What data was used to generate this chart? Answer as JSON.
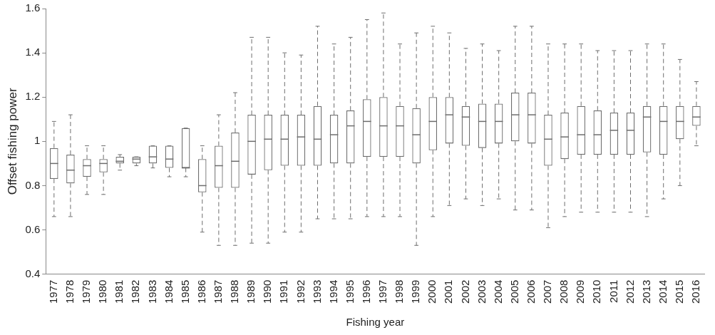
{
  "chart_data": {
    "type": "box",
    "xlabel": "Fishing year",
    "ylabel": "Offset fishing power",
    "categories": [
      "1977",
      "1978",
      "1979",
      "1980",
      "1981",
      "1982",
      "1983",
      "1984",
      "1985",
      "1986",
      "1987",
      "1988",
      "1989",
      "1990",
      "1991",
      "1992",
      "1993",
      "1994",
      "1995",
      "1996",
      "1997",
      "1998",
      "1999",
      "2000",
      "2001",
      "2002",
      "2003",
      "2004",
      "2005",
      "2006",
      "2007",
      "2008",
      "2009",
      "2010",
      "2011",
      "2012",
      "2013",
      "2014",
      "2015",
      "2016"
    ],
    "color": "#6e6e6e",
    "line_style": "dashed",
    "ylim": [
      0.4,
      1.6
    ],
    "yticks": [
      0.4,
      0.6,
      0.8,
      1,
      1.2,
      1.4,
      1.6
    ],
    "boxes": [
      {
        "low": 0.66,
        "q1": 0.83,
        "median": 0.9,
        "q3": 0.97,
        "high": 1.09
      },
      {
        "low": 0.66,
        "q1": 0.81,
        "median": 0.87,
        "q3": 0.94,
        "high": 1.12
      },
      {
        "low": 0.76,
        "q1": 0.84,
        "median": 0.89,
        "q3": 0.92,
        "high": 0.98
      },
      {
        "low": 0.76,
        "q1": 0.86,
        "median": 0.9,
        "q3": 0.92,
        "high": 0.98
      },
      {
        "low": 0.87,
        "q1": 0.9,
        "median": 0.91,
        "q3": 0.93,
        "high": 0.94
      },
      {
        "low": 0.89,
        "q1": 0.9,
        "median": 0.92,
        "q3": 0.93,
        "high": 0.93
      },
      {
        "low": 0.88,
        "q1": 0.9,
        "median": 0.93,
        "q3": 0.98,
        "high": 0.98
      },
      {
        "low": 0.84,
        "q1": 0.88,
        "median": 0.92,
        "q3": 0.98,
        "high": 0.98
      },
      {
        "low": 0.84,
        "q1": 0.88,
        "median": 0.88,
        "q3": 1.06,
        "high": 1.06
      },
      {
        "low": 0.59,
        "q1": 0.77,
        "median": 0.8,
        "q3": 0.92,
        "high": 0.98
      },
      {
        "low": 0.53,
        "q1": 0.79,
        "median": 0.89,
        "q3": 0.98,
        "high": 1.12
      },
      {
        "low": 0.53,
        "q1": 0.79,
        "median": 0.91,
        "q3": 1.04,
        "high": 1.22
      },
      {
        "low": 0.54,
        "q1": 0.85,
        "median": 1.0,
        "q3": 1.12,
        "high": 1.47
      },
      {
        "low": 0.54,
        "q1": 0.87,
        "median": 1.01,
        "q3": 1.12,
        "high": 1.47
      },
      {
        "low": 0.59,
        "q1": 0.89,
        "median": 1.01,
        "q3": 1.12,
        "high": 1.4
      },
      {
        "low": 0.59,
        "q1": 0.89,
        "median": 1.02,
        "q3": 1.12,
        "high": 1.39
      },
      {
        "low": 0.65,
        "q1": 0.89,
        "median": 1.01,
        "q3": 1.16,
        "high": 1.52
      },
      {
        "low": 0.65,
        "q1": 0.9,
        "median": 1.03,
        "q3": 1.12,
        "high": 1.44
      },
      {
        "low": 0.65,
        "q1": 0.9,
        "median": 1.07,
        "q3": 1.14,
        "high": 1.47
      },
      {
        "low": 0.66,
        "q1": 0.93,
        "median": 1.09,
        "q3": 1.19,
        "high": 1.55
      },
      {
        "low": 0.66,
        "q1": 0.93,
        "median": 1.07,
        "q3": 1.2,
        "high": 1.58
      },
      {
        "low": 0.66,
        "q1": 0.93,
        "median": 1.07,
        "q3": 1.16,
        "high": 1.44
      },
      {
        "low": 0.53,
        "q1": 0.9,
        "median": 1.03,
        "q3": 1.15,
        "high": 1.49
      },
      {
        "low": 0.66,
        "q1": 0.96,
        "median": 1.09,
        "q3": 1.2,
        "high": 1.52
      },
      {
        "low": 0.71,
        "q1": 0.99,
        "median": 1.12,
        "q3": 1.2,
        "high": 1.49
      },
      {
        "low": 0.74,
        "q1": 0.98,
        "median": 1.11,
        "q3": 1.16,
        "high": 1.42
      },
      {
        "low": 0.71,
        "q1": 0.97,
        "median": 1.09,
        "q3": 1.17,
        "high": 1.44
      },
      {
        "low": 0.74,
        "q1": 0.99,
        "median": 1.09,
        "q3": 1.17,
        "high": 1.41
      },
      {
        "low": 0.69,
        "q1": 1.0,
        "median": 1.12,
        "q3": 1.22,
        "high": 1.52
      },
      {
        "low": 0.69,
        "q1": 0.99,
        "median": 1.12,
        "q3": 1.22,
        "high": 1.52
      },
      {
        "low": 0.61,
        "q1": 0.89,
        "median": 1.01,
        "q3": 1.12,
        "high": 1.44
      },
      {
        "low": 0.66,
        "q1": 0.92,
        "median": 1.02,
        "q3": 1.13,
        "high": 1.44
      },
      {
        "low": 0.68,
        "q1": 0.94,
        "median": 1.03,
        "q3": 1.16,
        "high": 1.44
      },
      {
        "low": 0.68,
        "q1": 0.94,
        "median": 1.03,
        "q3": 1.14,
        "high": 1.41
      },
      {
        "low": 0.68,
        "q1": 0.94,
        "median": 1.05,
        "q3": 1.13,
        "high": 1.41
      },
      {
        "low": 0.68,
        "q1": 0.94,
        "median": 1.05,
        "q3": 1.13,
        "high": 1.41
      },
      {
        "low": 0.66,
        "q1": 0.95,
        "median": 1.11,
        "q3": 1.16,
        "high": 1.44
      },
      {
        "low": 0.74,
        "q1": 0.94,
        "median": 1.09,
        "q3": 1.16,
        "high": 1.44
      },
      {
        "low": 0.8,
        "q1": 1.01,
        "median": 1.09,
        "q3": 1.16,
        "high": 1.37
      },
      {
        "low": 0.98,
        "q1": 1.07,
        "median": 1.11,
        "q3": 1.16,
        "high": 1.27
      }
    ]
  }
}
